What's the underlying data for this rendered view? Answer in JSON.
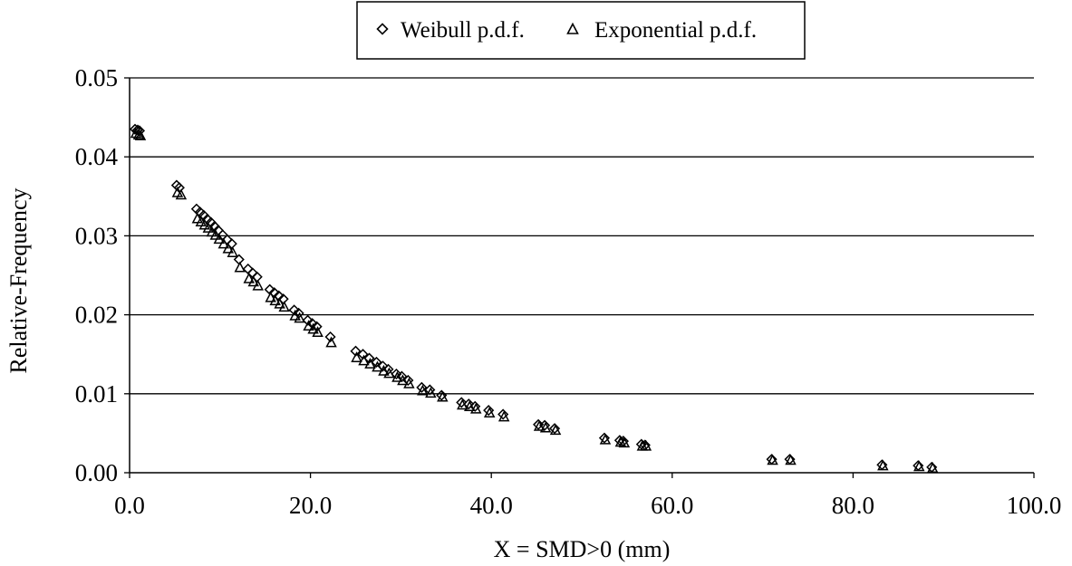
{
  "chart_data": {
    "type": "scatter",
    "title": "",
    "xlabel": "X = SMD>0 (mm)",
    "ylabel": "Relative-Frequency",
    "xlim": [
      0,
      100
    ],
    "ylim": [
      0,
      0.05
    ],
    "x_ticks": [
      "0.0",
      "20.0",
      "40.0",
      "60.0",
      "80.0",
      "100.0"
    ],
    "y_ticks": [
      "0.00",
      "0.01",
      "0.02",
      "0.03",
      "0.04",
      "0.05"
    ],
    "grid": "horizontal",
    "legend_position": "top-center",
    "series": [
      {
        "name": "Weibull p.d.f.",
        "marker": "diamond",
        "points": [
          [
            0.6,
            0.0435
          ],
          [
            0.9,
            0.0434
          ],
          [
            1.1,
            0.0433
          ],
          [
            5.2,
            0.0364
          ],
          [
            5.5,
            0.0361
          ],
          [
            7.4,
            0.0334
          ],
          [
            7.8,
            0.033
          ],
          [
            8.2,
            0.0326
          ],
          [
            8.6,
            0.0321
          ],
          [
            9.0,
            0.0317
          ],
          [
            9.4,
            0.0312
          ],
          [
            9.8,
            0.0307
          ],
          [
            10.3,
            0.0301
          ],
          [
            10.8,
            0.0295
          ],
          [
            11.3,
            0.029
          ],
          [
            12.1,
            0.027
          ],
          [
            13.1,
            0.0258
          ],
          [
            13.6,
            0.0253
          ],
          [
            14.1,
            0.0248
          ],
          [
            15.5,
            0.0232
          ],
          [
            16.0,
            0.0228
          ],
          [
            16.5,
            0.0224
          ],
          [
            17.0,
            0.022
          ],
          [
            18.2,
            0.0206
          ],
          [
            18.7,
            0.0202
          ],
          [
            19.7,
            0.0193
          ],
          [
            20.2,
            0.0189
          ],
          [
            20.7,
            0.0185
          ],
          [
            22.2,
            0.0172
          ],
          [
            25.0,
            0.0154
          ],
          [
            25.8,
            0.015
          ],
          [
            26.5,
            0.0145
          ],
          [
            27.3,
            0.014
          ],
          [
            28.0,
            0.0135
          ],
          [
            28.6,
            0.0131
          ],
          [
            29.5,
            0.0125
          ],
          [
            30.1,
            0.0122
          ],
          [
            30.8,
            0.0117
          ],
          [
            32.3,
            0.0108
          ],
          [
            33.2,
            0.0105
          ],
          [
            34.5,
            0.0098
          ],
          [
            36.7,
            0.0089
          ],
          [
            37.5,
            0.0087
          ],
          [
            38.2,
            0.0084
          ],
          [
            39.7,
            0.0079
          ],
          [
            41.3,
            0.0074
          ],
          [
            45.2,
            0.0061
          ],
          [
            45.9,
            0.006
          ],
          [
            47.0,
            0.0056
          ],
          [
            52.5,
            0.0044
          ],
          [
            54.2,
            0.0041
          ],
          [
            54.6,
            0.004
          ],
          [
            56.6,
            0.0036
          ],
          [
            57.0,
            0.0035
          ],
          [
            71.0,
            0.0017
          ],
          [
            73.0,
            0.0017
          ],
          [
            83.2,
            0.001
          ],
          [
            87.2,
            0.0009
          ],
          [
            88.7,
            0.0007
          ]
        ]
      },
      {
        "name": "Exponential p.d.f.",
        "marker": "triangle",
        "points": [
          [
            0.7,
            0.043
          ],
          [
            1.0,
            0.0428
          ],
          [
            1.2,
            0.0427
          ],
          [
            5.3,
            0.0355
          ],
          [
            5.7,
            0.0352
          ],
          [
            7.5,
            0.0322
          ],
          [
            7.9,
            0.0318
          ],
          [
            8.3,
            0.0314
          ],
          [
            8.7,
            0.031
          ],
          [
            9.1,
            0.0305
          ],
          [
            9.5,
            0.0301
          ],
          [
            9.9,
            0.0296
          ],
          [
            10.4,
            0.029
          ],
          [
            10.9,
            0.0284
          ],
          [
            11.4,
            0.0279
          ],
          [
            12.2,
            0.026
          ],
          [
            13.2,
            0.0246
          ],
          [
            13.7,
            0.0242
          ],
          [
            14.2,
            0.0237
          ],
          [
            15.6,
            0.0222
          ],
          [
            16.1,
            0.0218
          ],
          [
            16.6,
            0.0214
          ],
          [
            17.1,
            0.021
          ],
          [
            18.3,
            0.0199
          ],
          [
            18.8,
            0.0196
          ],
          [
            19.8,
            0.0186
          ],
          [
            20.3,
            0.0182
          ],
          [
            20.8,
            0.0178
          ],
          [
            22.3,
            0.0165
          ],
          [
            25.1,
            0.0146
          ],
          [
            25.9,
            0.0142
          ],
          [
            26.6,
            0.0138
          ],
          [
            27.4,
            0.0134
          ],
          [
            28.1,
            0.0129
          ],
          [
            28.7,
            0.0126
          ],
          [
            29.6,
            0.0121
          ],
          [
            30.2,
            0.0117
          ],
          [
            30.9,
            0.0113
          ],
          [
            32.4,
            0.0104
          ],
          [
            33.3,
            0.0101
          ],
          [
            34.6,
            0.0096
          ],
          [
            36.8,
            0.0086
          ],
          [
            37.6,
            0.0084
          ],
          [
            38.3,
            0.0081
          ],
          [
            39.8,
            0.0076
          ],
          [
            41.4,
            0.0071
          ],
          [
            45.3,
            0.0059
          ],
          [
            46.0,
            0.0057
          ],
          [
            47.1,
            0.0054
          ],
          [
            52.6,
            0.0042
          ],
          [
            54.3,
            0.0039
          ],
          [
            54.7,
            0.0038
          ],
          [
            56.7,
            0.0034
          ],
          [
            57.1,
            0.0034
          ],
          [
            71.1,
            0.0016
          ],
          [
            73.1,
            0.0016
          ],
          [
            83.3,
            0.0009
          ],
          [
            87.3,
            0.0008
          ],
          [
            88.8,
            0.0006
          ]
        ]
      }
    ]
  }
}
